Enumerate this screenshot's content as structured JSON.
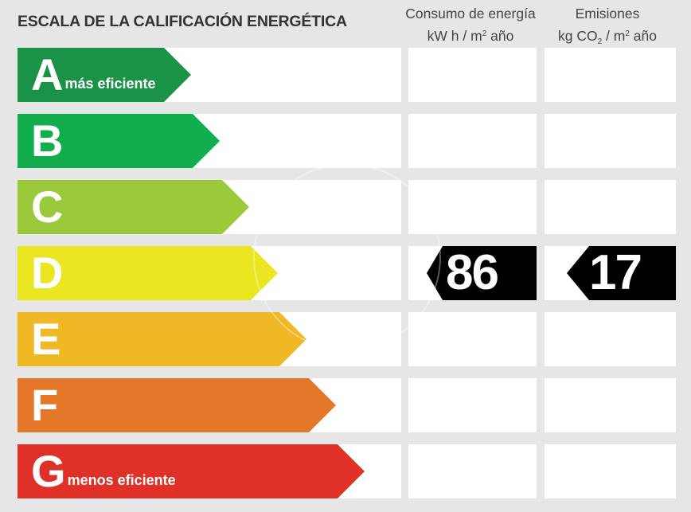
{
  "header": {
    "title": "ESCALA DE LA CALIFICACIÓN ENERGÉTICA",
    "consumo_line1": "Consumo de energía",
    "consumo_line2_a": "kW h  / m",
    "consumo_sup": "2",
    "consumo_line2_b": " año",
    "emisiones_line1": "Emisiones",
    "emisiones_line2_a": "kg CO",
    "emisiones_sub": "2",
    "emisiones_line2_b": "  / m",
    "emisiones_sup": "2",
    "emisiones_line2_c": " año"
  },
  "ratings": [
    {
      "letter": "A",
      "sublabel": "más eficiente",
      "color": "#1a9346"
    },
    {
      "letter": "B",
      "sublabel": "",
      "color": "#12ae4d"
    },
    {
      "letter": "C",
      "sublabel": "",
      "color": "#9ac93b"
    },
    {
      "letter": "D",
      "sublabel": "",
      "color": "#eae621"
    },
    {
      "letter": "E",
      "sublabel": "",
      "color": "#efb824"
    },
    {
      "letter": "F",
      "sublabel": "",
      "color": "#e4772a"
    },
    {
      "letter": "G",
      "sublabel": "menos eficiente",
      "color": "#e03129"
    }
  ],
  "result": {
    "rating": "D",
    "consumo_value": "86",
    "emisiones_value": "17",
    "badge_color": "#000000"
  }
}
